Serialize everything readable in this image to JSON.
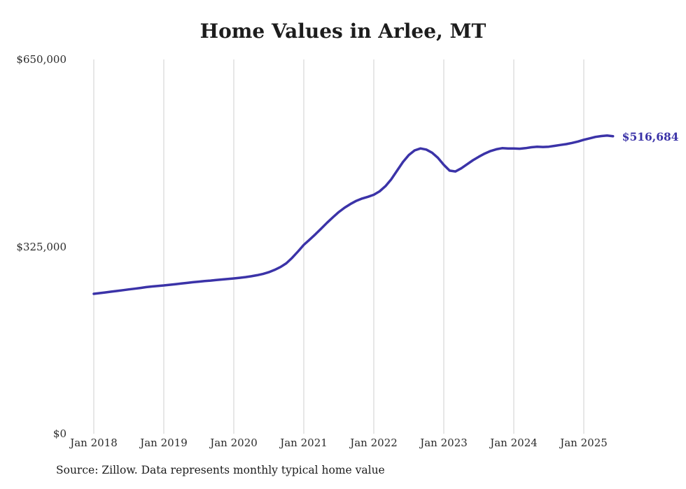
{
  "chart_data": {
    "type": "line",
    "title": "Home Values in Arlee, MT",
    "xlabel": "",
    "ylabel": "",
    "ylim": [
      0,
      650000
    ],
    "grid": "vertical-only",
    "legend": "none",
    "line_color": "#3b33a8",
    "end_label": "$516,684",
    "end_value": 516684,
    "source": "Source: Zillow. Data represents monthly typical home value",
    "x_ticks": [
      "Jan 2018",
      "Jan 2019",
      "Jan 2020",
      "Jan 2021",
      "Jan 2022",
      "Jan 2023",
      "Jan 2024",
      "Jan 2025"
    ],
    "y_ticks": [
      {
        "label": "$0",
        "value": 0
      },
      {
        "label": "$325,000",
        "value": 325000
      },
      {
        "label": "$650,000",
        "value": 650000
      }
    ],
    "frequency": "monthly",
    "x": [
      "2018-01",
      "2018-02",
      "2018-03",
      "2018-04",
      "2018-05",
      "2018-06",
      "2018-07",
      "2018-08",
      "2018-09",
      "2018-10",
      "2018-11",
      "2018-12",
      "2019-01",
      "2019-02",
      "2019-03",
      "2019-04",
      "2019-05",
      "2019-06",
      "2019-07",
      "2019-08",
      "2019-09",
      "2019-10",
      "2019-11",
      "2019-12",
      "2020-01",
      "2020-02",
      "2020-03",
      "2020-04",
      "2020-05",
      "2020-06",
      "2020-07",
      "2020-08",
      "2020-09",
      "2020-10",
      "2020-11",
      "2020-12",
      "2021-01",
      "2021-02",
      "2021-03",
      "2021-04",
      "2021-05",
      "2021-06",
      "2021-07",
      "2021-08",
      "2021-09",
      "2021-10",
      "2021-11",
      "2021-12",
      "2022-01",
      "2022-02",
      "2022-03",
      "2022-04",
      "2022-05",
      "2022-06",
      "2022-07",
      "2022-08",
      "2022-09",
      "2022-10",
      "2022-11",
      "2022-12",
      "2023-01",
      "2023-02",
      "2023-03",
      "2023-04",
      "2023-05",
      "2023-06",
      "2023-07",
      "2023-08",
      "2023-09",
      "2023-10",
      "2023-11",
      "2023-12",
      "2024-01",
      "2024-02",
      "2024-03",
      "2024-04",
      "2024-05",
      "2024-06",
      "2024-07",
      "2024-08",
      "2024-09",
      "2024-10",
      "2024-11",
      "2024-12",
      "2025-01",
      "2025-02",
      "2025-03",
      "2025-04",
      "2025-05",
      "2025-06"
    ],
    "values": [
      243000,
      244200,
      245400,
      246700,
      248000,
      249300,
      250600,
      251900,
      253200,
      254600,
      255700,
      256700,
      257600,
      258700,
      259800,
      260900,
      262000,
      263100,
      264100,
      265100,
      266000,
      267000,
      267900,
      268800,
      269700,
      270800,
      272000,
      273500,
      275300,
      277500,
      280500,
      284500,
      289500,
      296000,
      305500,
      316500,
      328000,
      337000,
      346500,
      356500,
      366500,
      376000,
      385000,
      392500,
      399000,
      404500,
      408500,
      411500,
      415000,
      421000,
      430000,
      442000,
      457000,
      472000,
      484000,
      492000,
      495500,
      493500,
      488000,
      479000,
      467000,
      457000,
      455500,
      461000,
      468000,
      475000,
      481000,
      486500,
      491000,
      494000,
      496000,
      495500,
      495500,
      495000,
      496000,
      497500,
      498500,
      498000,
      498500,
      500000,
      501500,
      503000,
      505000,
      507500,
      510500,
      513000,
      515500,
      517000,
      517800,
      516684
    ]
  }
}
